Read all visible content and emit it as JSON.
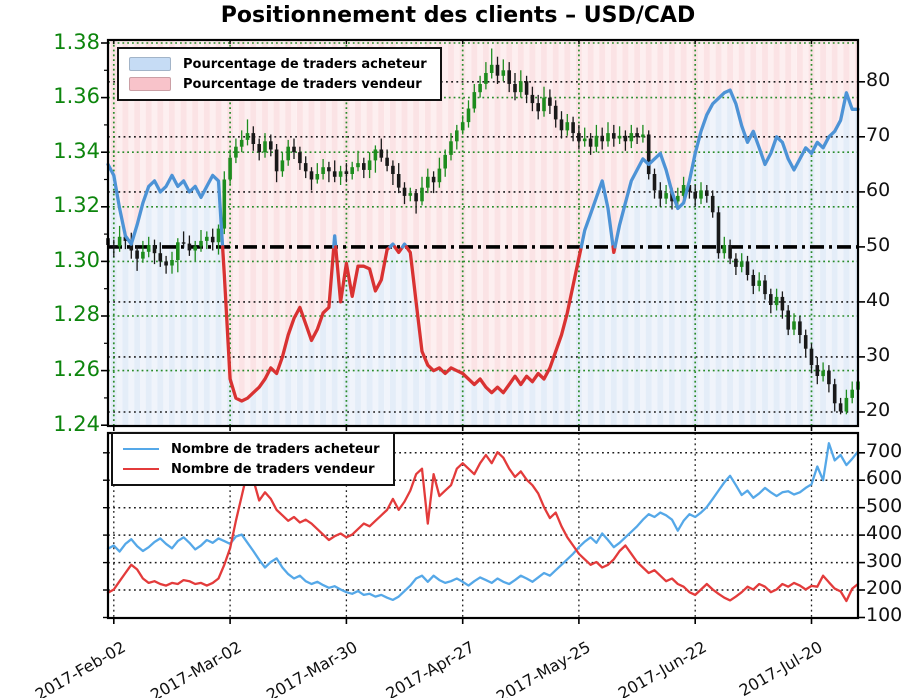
{
  "title": "Positionnement des clients – USD/CAD",
  "main_legend": {
    "items": [
      {
        "label": "Pourcentage de traders acheteur",
        "swatch": "#c6dcf5"
      },
      {
        "label": "Pourcentage de traders vendeur",
        "swatch": "#f8c3ca"
      }
    ]
  },
  "lower_legend": {
    "items": [
      {
        "label": "Nombre de traders acheteur",
        "swatch": "#55a8e8"
      },
      {
        "label": "Nombre de traders vendeur",
        "swatch": "#e33b3b"
      }
    ]
  },
  "chart_data": {
    "type": "candlestick+line",
    "title": "Positionnement des clients – USD/CAD",
    "panels": [
      "USD/CAD price candles with % of traders long/short",
      "number of traders long/short"
    ],
    "price_tick_labels": [
      "1.38",
      "1.36",
      "1.34",
      "1.32",
      "1.30",
      "1.28",
      "1.26",
      "1.24"
    ],
    "price_tick_values": [
      1.38,
      1.36,
      1.34,
      1.32,
      1.3,
      1.28,
      1.26,
      1.24
    ],
    "pct_tick_labels": [
      "80",
      "70",
      "60",
      "50",
      "40",
      "30",
      "20"
    ],
    "pct_tick_values": [
      80,
      70,
      60,
      50,
      40,
      30,
      20
    ],
    "count_tick_labels": [
      "700",
      "600",
      "500",
      "400",
      "300",
      "200",
      "100"
    ],
    "count_tick_values": [
      700,
      600,
      500,
      400,
      300,
      200,
      100
    ],
    "date_tick_labels": [
      "2017-Feb-02",
      "2017-Mar-02",
      "2017-Mar-30",
      "2017-Apr-27",
      "2017-May-25",
      "2017-Jun-22",
      "2017-Jul-20"
    ],
    "date_tick_indices": [
      1,
      21,
      41,
      61,
      81,
      101,
      121
    ],
    "price_ylim": [
      1.2397,
      1.3811
    ],
    "pct_ylim": [
      17.45,
      87.6
    ],
    "count_ylim": [
      98,
      772
    ],
    "reference_level": 50,
    "grid": true,
    "legend_position": "upper left",
    "colors": {
      "candle_up": "#1e8c1e",
      "candle_down": "#191919",
      "pct_above": "#4d93d6",
      "pct_below": "#d93232",
      "buyers_line": "#55a8e8",
      "sellers_line": "#e33b3b",
      "fill_above": "235,122,132",
      "fill_below": "128,168,220",
      "grid_green": "#2a8c2a",
      "grid_black": "#1c1c1c",
      "axis_price_label": "#0d850d",
      "reference_line": "#000000"
    },
    "candles_ohlc": [
      [
        1.3085,
        1.3115,
        1.304,
        1.306
      ],
      [
        1.306,
        1.308,
        1.3015,
        1.3055
      ],
      [
        1.3055,
        1.313,
        1.3035,
        1.309
      ],
      [
        1.309,
        1.311,
        1.3045,
        1.3075
      ],
      [
        1.3075,
        1.3105,
        1.301,
        1.304
      ],
      [
        1.304,
        1.3055,
        1.2965,
        1.301
      ],
      [
        1.301,
        1.3075,
        1.2995,
        1.3035
      ],
      [
        1.3035,
        1.309,
        1.3015,
        1.306
      ],
      [
        1.306,
        1.308,
        1.299,
        1.303
      ],
      [
        1.303,
        1.307,
        1.298,
        1.3
      ],
      [
        1.3,
        1.302,
        1.2955,
        1.2985
      ],
      [
        1.2985,
        1.3035,
        1.2955,
        1.3005
      ],
      [
        1.3005,
        1.3085,
        1.296,
        1.307
      ],
      [
        1.307,
        1.311,
        1.305,
        1.3065
      ],
      [
        1.3065,
        1.3095,
        1.302,
        1.304
      ],
      [
        1.304,
        1.3075,
        1.3,
        1.3055
      ],
      [
        1.3055,
        1.3115,
        1.3035,
        1.3075
      ],
      [
        1.3075,
        1.311,
        1.3045,
        1.309
      ],
      [
        1.309,
        1.312,
        1.304,
        1.307
      ],
      [
        1.307,
        1.3135,
        1.3025,
        1.312
      ],
      [
        1.312,
        1.333,
        1.31,
        1.33
      ],
      [
        1.33,
        1.341,
        1.328,
        1.338
      ],
      [
        1.338,
        1.345,
        1.336,
        1.342
      ],
      [
        1.342,
        1.348,
        1.34,
        1.3445
      ],
      [
        1.3445,
        1.352,
        1.3425,
        1.347
      ],
      [
        1.347,
        1.3495,
        1.3405,
        1.343
      ],
      [
        1.343,
        1.345,
        1.337,
        1.34
      ],
      [
        1.34,
        1.347,
        1.338,
        1.344
      ],
      [
        1.344,
        1.3465,
        1.3385,
        1.341
      ],
      [
        1.341,
        1.343,
        1.329,
        1.333
      ],
      [
        1.333,
        1.34,
        1.331,
        1.337
      ],
      [
        1.337,
        1.3445,
        1.335,
        1.342
      ],
      [
        1.342,
        1.345,
        1.3375,
        1.34
      ],
      [
        1.34,
        1.342,
        1.3335,
        1.336
      ],
      [
        1.336,
        1.3385,
        1.3305,
        1.333
      ],
      [
        1.333,
        1.3345,
        1.326,
        1.33
      ],
      [
        1.33,
        1.336,
        1.3285,
        1.332
      ],
      [
        1.332,
        1.3375,
        1.33,
        1.3345
      ],
      [
        1.3345,
        1.3365,
        1.329,
        1.333
      ],
      [
        1.333,
        1.337,
        1.329,
        1.331
      ],
      [
        1.331,
        1.335,
        1.328,
        1.333
      ],
      [
        1.333,
        1.336,
        1.329,
        1.332
      ],
      [
        1.332,
        1.3365,
        1.33,
        1.3345
      ],
      [
        1.3345,
        1.3405,
        1.333,
        1.336
      ],
      [
        1.336,
        1.338,
        1.3305,
        1.3335
      ],
      [
        1.3335,
        1.34,
        1.3305,
        1.337
      ],
      [
        1.337,
        1.3425,
        1.3325,
        1.341
      ],
      [
        1.341,
        1.345,
        1.3365,
        1.338
      ],
      [
        1.338,
        1.341,
        1.333,
        1.335
      ],
      [
        1.335,
        1.337,
        1.328,
        1.332
      ],
      [
        1.332,
        1.336,
        1.325,
        1.327
      ],
      [
        1.327,
        1.329,
        1.321,
        1.324
      ],
      [
        1.324,
        1.327,
        1.322,
        1.325
      ],
      [
        1.325,
        1.3265,
        1.3175,
        1.322
      ],
      [
        1.322,
        1.331,
        1.3205,
        1.327
      ],
      [
        1.327,
        1.334,
        1.325,
        1.331
      ],
      [
        1.331,
        1.333,
        1.325,
        1.329
      ],
      [
        1.329,
        1.338,
        1.327,
        1.334
      ],
      [
        1.334,
        1.341,
        1.331,
        1.339
      ],
      [
        1.339,
        1.347,
        1.337,
        1.344
      ],
      [
        1.344,
        1.35,
        1.341,
        1.348
      ],
      [
        1.348,
        1.3535,
        1.3465,
        1.351
      ],
      [
        1.351,
        1.359,
        1.349,
        1.356
      ],
      [
        1.356,
        1.365,
        1.3545,
        1.362
      ],
      [
        1.362,
        1.368,
        1.36,
        1.365
      ],
      [
        1.365,
        1.373,
        1.363,
        1.369
      ],
      [
        1.369,
        1.378,
        1.367,
        1.372
      ],
      [
        1.372,
        1.375,
        1.365,
        1.368
      ],
      [
        1.368,
        1.374,
        1.366,
        1.37
      ],
      [
        1.37,
        1.373,
        1.362,
        1.365
      ],
      [
        1.365,
        1.369,
        1.359,
        1.362
      ],
      [
        1.362,
        1.37,
        1.36,
        1.366
      ],
      [
        1.366,
        1.368,
        1.358,
        1.361
      ],
      [
        1.361,
        1.364,
        1.355,
        1.358
      ],
      [
        1.358,
        1.361,
        1.352,
        1.355
      ],
      [
        1.355,
        1.364,
        1.353,
        1.36
      ],
      [
        1.36,
        1.363,
        1.354,
        1.357
      ],
      [
        1.357,
        1.359,
        1.349,
        1.352
      ],
      [
        1.352,
        1.355,
        1.345,
        1.348
      ],
      [
        1.348,
        1.354,
        1.346,
        1.351
      ],
      [
        1.351,
        1.353,
        1.344,
        1.347
      ],
      [
        1.347,
        1.35,
        1.341,
        1.344
      ],
      [
        1.344,
        1.349,
        1.342,
        1.345
      ],
      [
        1.345,
        1.347,
        1.339,
        1.342
      ],
      [
        1.342,
        1.35,
        1.34,
        1.346
      ],
      [
        1.346,
        1.349,
        1.341,
        1.344
      ],
      [
        1.344,
        1.351,
        1.342,
        1.347
      ],
      [
        1.347,
        1.35,
        1.342,
        1.345
      ],
      [
        1.345,
        1.3495,
        1.343,
        1.346
      ],
      [
        1.346,
        1.348,
        1.3405,
        1.344
      ],
      [
        1.344,
        1.35,
        1.3415,
        1.347
      ],
      [
        1.347,
        1.349,
        1.343,
        1.3455
      ],
      [
        1.3455,
        1.35,
        1.3435,
        1.3465
      ],
      [
        1.3465,
        1.348,
        1.33,
        1.332
      ],
      [
        1.332,
        1.334,
        1.323,
        1.326
      ],
      [
        1.326,
        1.329,
        1.32,
        1.323
      ],
      [
        1.323,
        1.328,
        1.321,
        1.325
      ],
      [
        1.325,
        1.327,
        1.319,
        1.322
      ],
      [
        1.322,
        1.327,
        1.32,
        1.324
      ],
      [
        1.324,
        1.331,
        1.322,
        1.328
      ],
      [
        1.328,
        1.33,
        1.323,
        1.3255
      ],
      [
        1.3255,
        1.328,
        1.32,
        1.323
      ],
      [
        1.323,
        1.329,
        1.321,
        1.326
      ],
      [
        1.326,
        1.328,
        1.3215,
        1.324
      ],
      [
        1.324,
        1.326,
        1.316,
        1.318
      ],
      [
        1.318,
        1.32,
        1.301,
        1.303
      ],
      [
        1.303,
        1.309,
        1.301,
        1.306
      ],
      [
        1.306,
        1.308,
        1.299,
        1.301
      ],
      [
        1.301,
        1.303,
        1.295,
        1.298
      ],
      [
        1.298,
        1.303,
        1.296,
        1.3
      ],
      [
        1.3,
        1.302,
        1.293,
        1.295
      ],
      [
        1.295,
        1.297,
        1.288,
        1.291
      ],
      [
        1.291,
        1.296,
        1.289,
        1.293
      ],
      [
        1.293,
        1.295,
        1.286,
        1.288
      ],
      [
        1.288,
        1.29,
        1.281,
        1.284
      ],
      [
        1.284,
        1.29,
        1.282,
        1.287
      ],
      [
        1.287,
        1.289,
        1.279,
        1.282
      ],
      [
        1.282,
        1.284,
        1.273,
        1.275
      ],
      [
        1.275,
        1.281,
        1.273,
        1.278
      ],
      [
        1.278,
        1.28,
        1.27,
        1.273
      ],
      [
        1.273,
        1.275,
        1.265,
        1.268
      ],
      [
        1.268,
        1.27,
        1.259,
        1.262
      ],
      [
        1.262,
        1.265,
        1.255,
        1.258
      ],
      [
        1.258,
        1.263,
        1.256,
        1.26
      ],
      [
        1.26,
        1.262,
        1.252,
        1.255
      ],
      [
        1.255,
        1.257,
        1.245,
        1.248
      ],
      [
        1.248,
        1.25,
        1.244,
        1.245
      ],
      [
        1.245,
        1.253,
        1.244,
        1.25
      ],
      [
        1.25,
        1.256,
        1.248,
        1.253
      ],
      [
        1.253,
        1.26,
        1.251,
        1.256
      ]
    ],
    "pct_traders_long": [
      65,
      63,
      57,
      52,
      50.5,
      54,
      58,
      61,
      62,
      60,
      61,
      63,
      61,
      62,
      60,
      61,
      59,
      61,
      63,
      62,
      45,
      26,
      22.5,
      22,
      22.5,
      23.5,
      24.5,
      26,
      28,
      27,
      30,
      34,
      37,
      39,
      36,
      33,
      35,
      38,
      39,
      52,
      40,
      47,
      41,
      46.5,
      46.5,
      46,
      42,
      44,
      49.5,
      50.5,
      49,
      50.5,
      49,
      40,
      31,
      28.5,
      27.5,
      28,
      27,
      28,
      27.5,
      27,
      26,
      25,
      26,
      24.5,
      23.5,
      24.5,
      23.5,
      25,
      26.5,
      25,
      26.5,
      25.5,
      27,
      26,
      28,
      31,
      34,
      38,
      43,
      48,
      53,
      56,
      59,
      62,
      57,
      49,
      54,
      58,
      62,
      64,
      66,
      65,
      66,
      67,
      64,
      60,
      57,
      58,
      62,
      67,
      71,
      74,
      76,
      77,
      78,
      78.5,
      76,
      72,
      69,
      71,
      68,
      65,
      67,
      70,
      69,
      66,
      64,
      66,
      68,
      67,
      69,
      68,
      70,
      71,
      73,
      78,
      75,
      75
    ],
    "buyers_count": [
      350,
      362,
      340,
      368,
      385,
      360,
      342,
      356,
      375,
      388,
      368,
      352,
      378,
      392,
      372,
      348,
      362,
      382,
      372,
      388,
      378,
      368,
      395,
      402,
      372,
      342,
      310,
      282,
      302,
      315,
      282,
      258,
      242,
      252,
      232,
      222,
      230,
      218,
      208,
      214,
      202,
      192,
      186,
      196,
      182,
      186,
      176,
      182,
      172,
      164,
      176,
      196,
      216,
      242,
      252,
      230,
      252,
      236,
      226,
      232,
      242,
      230,
      216,
      232,
      246,
      236,
      226,
      242,
      230,
      222,
      236,
      252,
      242,
      230,
      246,
      262,
      252,
      272,
      292,
      312,
      332,
      356,
      376,
      392,
      372,
      406,
      382,
      356,
      372,
      392,
      412,
      432,
      456,
      476,
      466,
      482,
      472,
      456,
      416,
      452,
      476,
      466,
      482,
      502,
      532,
      562,
      592,
      616,
      582,
      546,
      562,
      536,
      552,
      572,
      556,
      542,
      556,
      560,
      548,
      556,
      572,
      585,
      650,
      600,
      735,
      672,
      692,
      655,
      678,
      705
    ],
    "sellers_count": [
      190,
      202,
      232,
      262,
      292,
      275,
      242,
      226,
      232,
      222,
      216,
      226,
      222,
      236,
      232,
      222,
      226,
      216,
      226,
      242,
      292,
      352,
      452,
      542,
      632,
      602,
      526,
      556,
      532,
      492,
      472,
      452,
      466,
      446,
      456,
      442,
      422,
      402,
      382,
      396,
      406,
      392,
      402,
      422,
      442,
      432,
      452,
      472,
      492,
      532,
      492,
      522,
      562,
      622,
      642,
      442,
      622,
      542,
      562,
      582,
      642,
      662,
      642,
      622,
      662,
      692,
      662,
      702,
      682,
      642,
      612,
      632,
      602,
      582,
      552,
      502,
      462,
      482,
      432,
      392,
      362,
      332,
      312,
      292,
      302,
      282,
      292,
      312,
      342,
      362,
      332,
      302,
      282,
      262,
      272,
      252,
      232,
      242,
      222,
      212,
      192,
      182,
      202,
      222,
      202,
      186,
      172,
      162,
      176,
      192,
      212,
      202,
      222,
      212,
      192,
      202,
      222,
      212,
      226,
      216,
      202,
      215,
      212,
      252,
      228,
      205,
      195,
      160,
      205,
      222
    ]
  }
}
